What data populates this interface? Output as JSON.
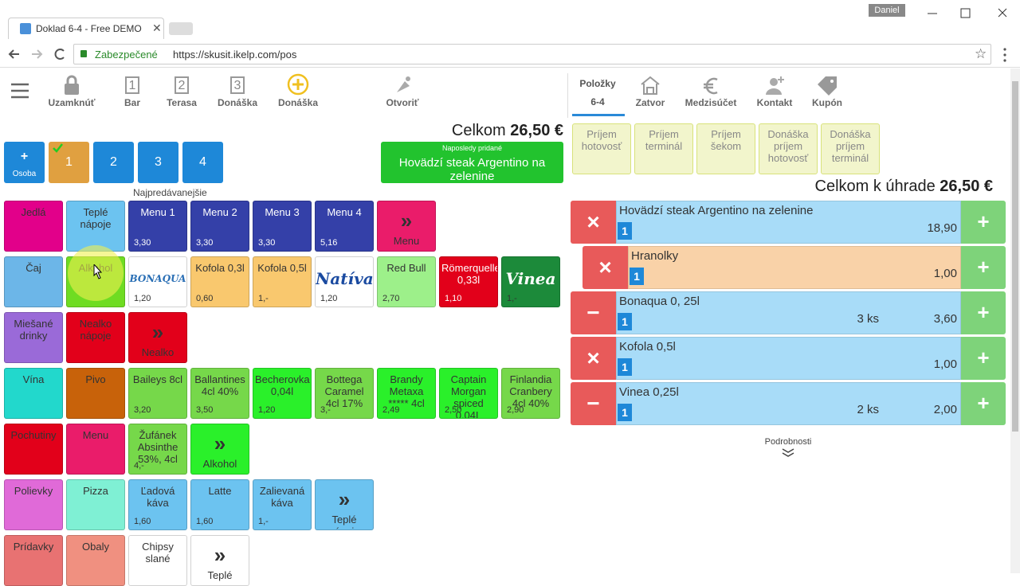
{
  "browser": {
    "tab_title": "Doklad 6-4 - Free DEMO",
    "user": "Daniel",
    "secure": "Zabezpečené",
    "url": "https://skusit.ikelp.com/pos"
  },
  "toolbar": {
    "left": [
      {
        "label": "Uzamknúť"
      },
      {
        "label": "Bar",
        "number": "1"
      },
      {
        "label": "Terasa",
        "number": "2"
      },
      {
        "label": "Donáška",
        "number": "3"
      },
      {
        "label": "Donáška"
      },
      {
        "label": "Otvoriť"
      }
    ],
    "right": [
      {
        "label": "Položky",
        "sub": "6-4"
      },
      {
        "label": "Zatvor"
      },
      {
        "label": "Medzisúčet"
      },
      {
        "label": "Kontakt"
      },
      {
        "label": "Kupón"
      }
    ]
  },
  "total": {
    "label": "Celkom",
    "amount": "26,50 €"
  },
  "guests": {
    "add": "+",
    "add_label": "Osoba",
    "buttons": [
      "1",
      "2",
      "3",
      "4"
    ]
  },
  "last_added": {
    "label": "Naposledy pridané",
    "item": "Hovädzí steak Argentino na zelenine"
  },
  "bestsellers": "Najpredávanejšie",
  "tiles": [
    [
      {
        "label": "Jedlá",
        "color": "#e2008a"
      },
      {
        "label": "Teplé nápoje",
        "color": "#6cc3f0"
      },
      {
        "label": "Menu 1",
        "price": "3,30",
        "color": "#3440a8",
        "text_color": "#ffffff"
      },
      {
        "label": "Menu 2",
        "price": "3,30",
        "color": "#3440a8",
        "text_color": "#ffffff"
      },
      {
        "label": "Menu 3",
        "price": "3,30",
        "color": "#3440a8",
        "text_color": "#ffffff"
      },
      {
        "label": "Menu 4",
        "price": "5,16",
        "color": "#3440a8",
        "text_color": "#ffffff"
      },
      {
        "label": "Menu",
        "arrow": "»",
        "color": "#ea1c6a"
      }
    ],
    [
      {
        "label": "Čaj",
        "color": "#6cb6e8"
      },
      {
        "label": "Alkohol",
        "color": "#6fdc22"
      },
      {
        "label": "",
        "logo": "BONAQUA",
        "price": "1,20",
        "color": "#ffffff",
        "logo_color": "#2a6fb5"
      },
      {
        "label": "Kofola 0,3l",
        "price": "0,60",
        "color": "#f9c86e"
      },
      {
        "label": "Kofola 0,5l",
        "price": "1,-",
        "color": "#f9c86e"
      },
      {
        "label": "",
        "logo": "Natíva",
        "price": "1,20",
        "color": "#ffffff",
        "logo_color": "#1a4aa0"
      },
      {
        "label": "Red Bull",
        "price": "2,70",
        "color": "#9df08a"
      },
      {
        "label": "Römerquelle 0,33l",
        "price": "1,10",
        "color": "#e2001a",
        "text_color": "#ffffff"
      },
      {
        "label": "",
        "logo": "Vinea",
        "price": "1,-",
        "color": "#1c8a3a",
        "logo_color": "#ffffff"
      }
    ],
    [
      {
        "label": "Miešané drinky",
        "color": "#9a6ad8"
      },
      {
        "label": "Nealko nápoje",
        "color": "#e2001a"
      },
      {
        "label": "Nealko",
        "arrow": "»",
        "color": "#e2001a"
      }
    ],
    [
      {
        "label": "Vína",
        "color": "#22d8cc"
      },
      {
        "label": "Pivo",
        "color": "#c8620a"
      },
      {
        "label": "Baileys 8cl",
        "price": "3,20",
        "color": "#76d84a"
      },
      {
        "label": "Ballantines 4cl 40%",
        "price": "3,50",
        "color": "#76d84a"
      },
      {
        "label": "Becherovka 0,04l",
        "price": "1,20",
        "color": "#2af02a"
      },
      {
        "label": "Bottega Caramel 4cl 17%",
        "price": "3,-",
        "color": "#76d84a"
      },
      {
        "label": "Brandy Metaxa ***** 4cl",
        "price": "2,49",
        "color": "#2af02a"
      },
      {
        "label": "Captain Morgan spiced 0,04L",
        "price": "2,50",
        "color": "#2af02a"
      },
      {
        "label": "Finlandia Cranbery 4cl 40%",
        "price": "2,90",
        "color": "#76d84a"
      }
    ],
    [
      {
        "label": "Pochutiny",
        "color": "#e2001a"
      },
      {
        "label": "Menu",
        "color": "#ea1c6a"
      },
      {
        "label": "Žufánek Absinthe 53%, 4cl",
        "price": "4,-",
        "color": "#76d84a"
      },
      {
        "label": "Alkohol",
        "arrow": "»",
        "color": "#2af02a"
      }
    ],
    [
      {
        "label": "Polievky",
        "color": "#e06ad8"
      },
      {
        "label": "Pizza",
        "color": "#7ff0d4"
      },
      {
        "label": "Ľadová káva",
        "price": "1,60",
        "color": "#6cc3f0"
      },
      {
        "label": "Latte",
        "price": "1,60",
        "color": "#6cc3f0"
      },
      {
        "label": "Zalievaná káva",
        "price": "1,-",
        "color": "#6cc3f0"
      },
      {
        "label": "Teplé nápoje",
        "arrow": "»",
        "color": "#6cc3f0"
      }
    ],
    [
      {
        "label": "Prídavky",
        "color": "#e87272"
      },
      {
        "label": "Obaly",
        "color": "#f09080"
      },
      {
        "label": "Chipsy slané",
        "color": "#ffffff"
      },
      {
        "label": "Teplé",
        "arrow": "»",
        "color": "#ffffff"
      }
    ]
  ],
  "payments": [
    "Príjem hotovosť",
    "Príjem terminál",
    "Príjem šekom",
    "Donáška príjem hotovosť",
    "Donáška príjem terminál"
  ],
  "due": {
    "label": "Celkom k úhrade",
    "amount": "26,50 €"
  },
  "order": {
    "add_button": "+",
    "items": [
      {
        "name": "Hovädzí steak Argentino na zelenine",
        "qty": "1",
        "price": "18,90",
        "button": "×",
        "color": "#a8dcf8"
      },
      {
        "name": "Hranolky",
        "qty": "1",
        "price": "1,00",
        "button": "×",
        "color": "#f9d2a8",
        "sub_item": true
      },
      {
        "name": "Bonaqua 0, 25l",
        "qty": "1",
        "count": "3 ks",
        "price": "3,60",
        "button": "−",
        "color": "#a8dcf8"
      },
      {
        "name": "Kofola 0,5l",
        "qty": "1",
        "price": "1,00",
        "button": "×",
        "color": "#a8dcf8"
      },
      {
        "name": "Vinea 0,25l",
        "qty": "1",
        "count": "2 ks",
        "price": "2,00",
        "button": "−",
        "color": "#a8dcf8"
      }
    ]
  },
  "details": "Podrobnosti"
}
